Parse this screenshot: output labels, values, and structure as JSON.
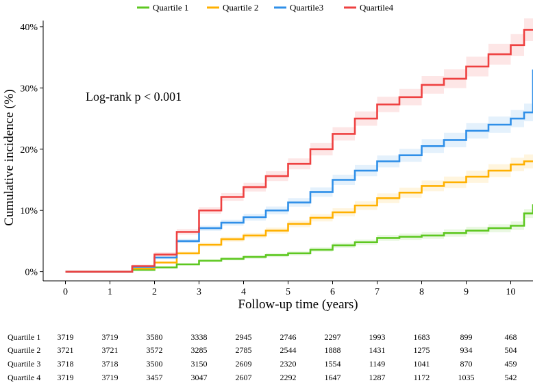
{
  "chart_data": {
    "type": "line",
    "title": "",
    "xlabel": "Follow-up time (years)",
    "ylabel": "Cumulative incidence (%)",
    "xlim": [
      -0.5,
      10.5
    ],
    "ylim": [
      -1.5,
      41
    ],
    "xticks": [
      0,
      1,
      2,
      3,
      4,
      5,
      6,
      7,
      8,
      9,
      10
    ],
    "xtick_labels": [
      "0",
      "1",
      "2",
      "3",
      "4",
      "5",
      "6",
      "7",
      "8",
      "9",
      "10"
    ],
    "yticks": [
      0,
      10,
      20,
      30,
      40
    ],
    "ytick_labels": [
      "0%",
      "10%",
      "20%",
      "30%",
      "40%"
    ],
    "legend_position": "top",
    "annotation": "Log-rank p < 0.001",
    "x": [
      0,
      1,
      1.5,
      2,
      2.5,
      3,
      3.5,
      4,
      4.5,
      5,
      5.5,
      6,
      6.5,
      7,
      7.5,
      8,
      8.5,
      9,
      9.5,
      10,
      10.3,
      10.5
    ],
    "series": [
      {
        "name": "Quartile 1",
        "color": "#5dc720",
        "values": [
          0,
          0,
          0.3,
          0.7,
          1.2,
          1.8,
          2.1,
          2.4,
          2.7,
          3.0,
          3.6,
          4.3,
          4.8,
          5.5,
          5.7,
          5.9,
          6.3,
          6.7,
          7.1,
          7.5,
          9.5,
          11.0
        ],
        "band": 0.7
      },
      {
        "name": "Quartile 2",
        "color": "#ffb000",
        "values": [
          0,
          0,
          0.5,
          1.5,
          3.0,
          4.4,
          5.3,
          5.9,
          6.7,
          7.8,
          8.8,
          9.7,
          10.8,
          12.0,
          12.9,
          14.0,
          14.6,
          15.5,
          16.5,
          17.5,
          18.0,
          18.0
        ],
        "band": 1.1
      },
      {
        "name": "Quartile3",
        "color": "#2f8fe8",
        "values": [
          0,
          0,
          0.8,
          2.3,
          5.0,
          7.1,
          8.0,
          8.9,
          10.0,
          11.3,
          13.0,
          15.0,
          16.5,
          18.0,
          19.0,
          20.5,
          21.5,
          23.0,
          24.0,
          25.0,
          26.0,
          33.0
        ],
        "band": 1.4
      },
      {
        "name": "Quartile4",
        "color": "#ee4040",
        "values": [
          0,
          0,
          0.9,
          2.8,
          6.5,
          10.0,
          12.2,
          13.8,
          15.6,
          17.6,
          20.0,
          22.5,
          25.0,
          27.3,
          28.5,
          30.5,
          31.5,
          33.5,
          35.5,
          37.0,
          39.5,
          39.5
        ],
        "band": 1.8
      }
    ]
  },
  "risk_table": {
    "columns": [
      "0",
      "1",
      "2",
      "3",
      "4",
      "5",
      "6",
      "7",
      "8",
      "9",
      "10"
    ],
    "rows": [
      {
        "label": "Quartile 1",
        "values": [
          "3719",
          "3719",
          "3580",
          "3338",
          "2945",
          "2746",
          "2297",
          "1993",
          "1683",
          "899",
          "468"
        ]
      },
      {
        "label": "Quartile 2",
        "values": [
          "3721",
          "3721",
          "3572",
          "3285",
          "2785",
          "2544",
          "1888",
          "1431",
          "1275",
          "934",
          "504"
        ]
      },
      {
        "label": "Quartile 3",
        "values": [
          "3718",
          "3718",
          "3500",
          "3150",
          "2609",
          "2320",
          "1554",
          "1149",
          "1041",
          "870",
          "459"
        ]
      },
      {
        "label": "Quartile 4",
        "values": [
          "3719",
          "3719",
          "3457",
          "3047",
          "2607",
          "2292",
          "1647",
          "1287",
          "1172",
          "1035",
          "542"
        ]
      }
    ]
  }
}
